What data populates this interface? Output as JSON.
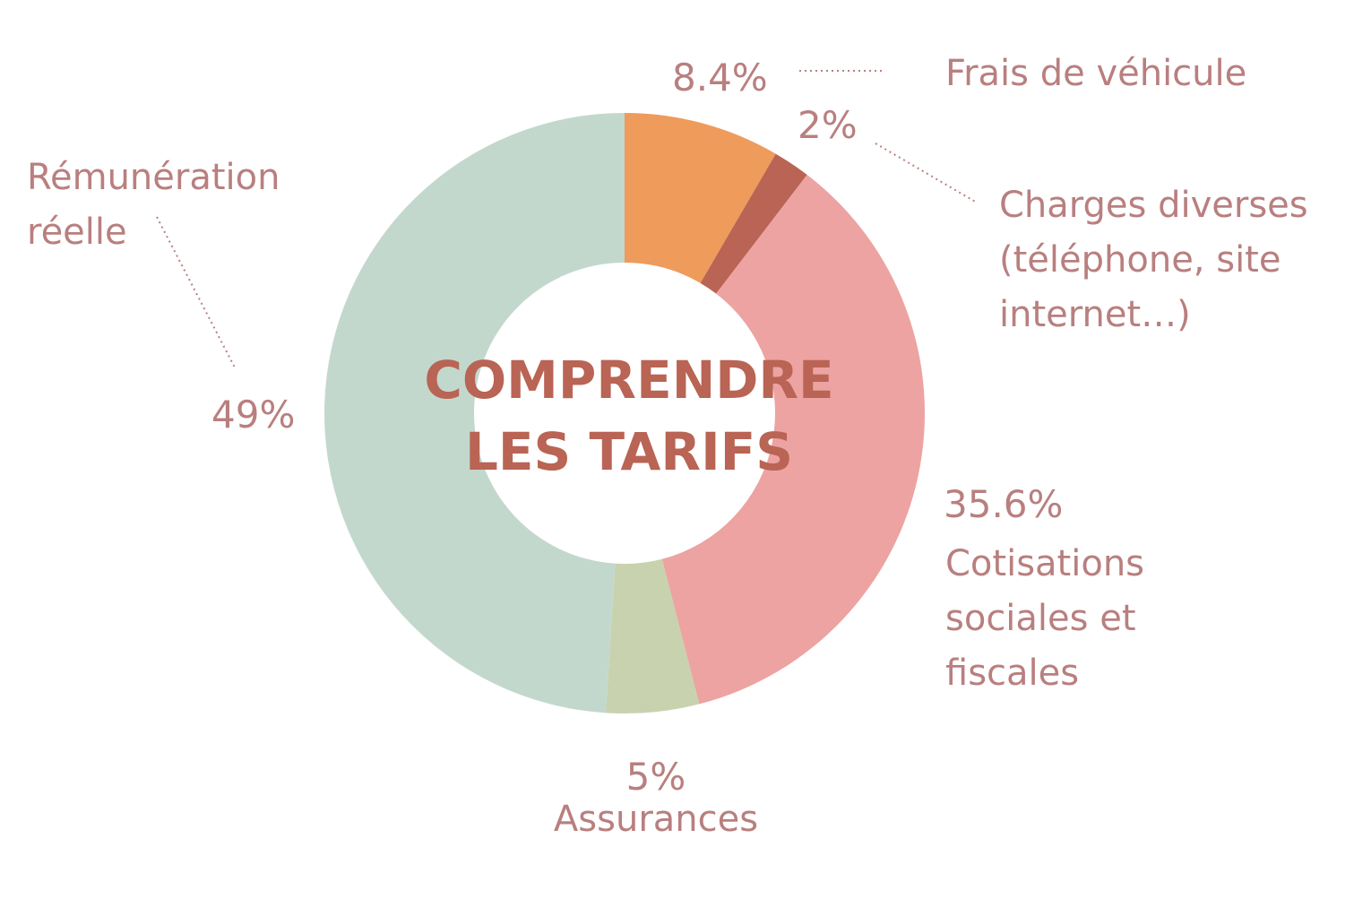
{
  "chart_data": {
    "type": "pie",
    "title": "COMPRENDRE LES TARIFS",
    "title_lines": [
      "COMPRENDRE",
      "LES TARIFS"
    ],
    "categories": [
      "Frais de véhicule",
      "Charges diverses (téléphone, site internet…)",
      "Cotisations sociales et fiscales",
      "Assurances",
      "Rémunération réelle"
    ],
    "values": [
      8.4,
      2,
      35.6,
      5,
      49
    ],
    "value_labels": [
      "8.4%",
      "2%",
      "35.6%",
      "5%",
      "49%"
    ],
    "colors": [
      "#ee9b5c",
      "#b96454",
      "#eca3a2",
      "#c9d2ae",
      "#c3d8cd"
    ],
    "label_lines": [
      [
        "Frais de véhicule"
      ],
      [
        "Charges diverses",
        "(téléphone, site",
        "internet…)"
      ],
      [
        "Cotisations",
        "sociales et",
        "fiscales"
      ],
      [
        "Assurances"
      ],
      [
        "Rémunération",
        "réelle"
      ]
    ],
    "legend": "none",
    "start_angle_deg": 0,
    "direction": "clockwise",
    "donut": true
  }
}
